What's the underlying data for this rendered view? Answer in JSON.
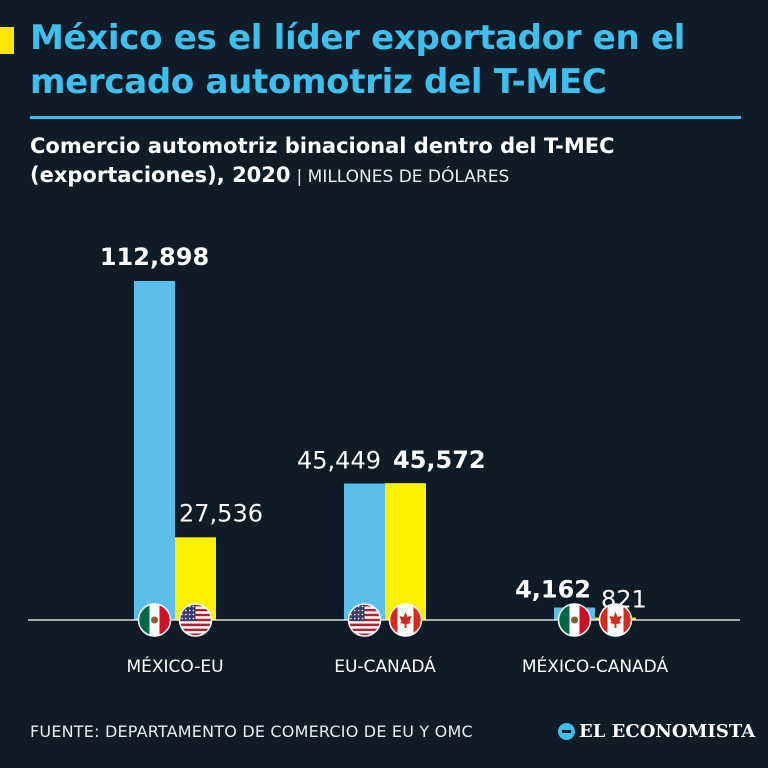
{
  "header": {
    "title": "México es el líder exportador en el mercado automotriz del T-MEC",
    "subtitle": "Comercio automotriz binacional dentro del T-MEC (exportaciones), 2020",
    "units": "| MILLONES DE DÓLARES"
  },
  "footer": {
    "source": "FUENTE: DEPARTAMENTO DE COMERCIO DE EU Y OMC",
    "logo_text": "EL ECONOMISTA"
  },
  "colors": {
    "background": "#101b28",
    "blue": "#5bbfec",
    "yellow": "#fff200",
    "title": "#3ec0ef"
  },
  "chart_data": {
    "type": "bar",
    "categories": [
      "MÉXICO-EU",
      "EU-CANADÁ",
      "MÉXICO-CANADÁ"
    ],
    "series": [
      {
        "values": [
          112898,
          45449,
          4162
        ],
        "labels": [
          "112,898",
          "45,449",
          "4,162"
        ],
        "bold": [
          true,
          false,
          true
        ],
        "flags": [
          "mexico-flag-icon",
          "usa-flag-icon",
          "mexico-flag-icon"
        ]
      },
      {
        "values": [
          27536,
          45572,
          821
        ],
        "labels": [
          "27,536",
          "45,572",
          "821"
        ],
        "bold": [
          false,
          true,
          false
        ],
        "flags": [
          "usa-flag-icon",
          "canada-flag-icon",
          "canada-flag-icon"
        ]
      }
    ],
    "ylim": [
      0,
      112898
    ],
    "grid": false,
    "legend": "none"
  }
}
